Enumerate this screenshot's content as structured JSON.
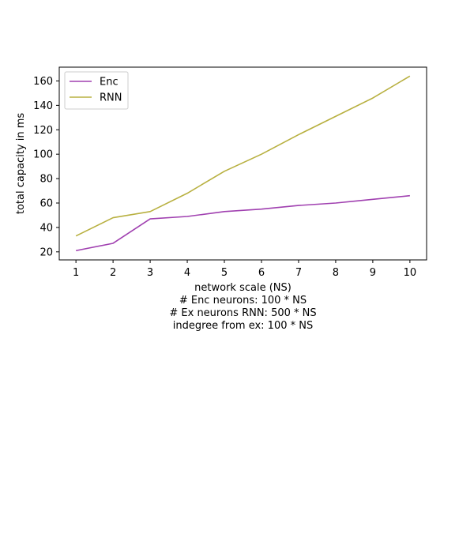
{
  "chart_data": {
    "type": "line",
    "x": [
      1,
      2,
      3,
      4,
      5,
      6,
      7,
      8,
      9,
      10
    ],
    "series": [
      {
        "name": "Enc",
        "color": "#a040b0",
        "values": [
          21,
          27,
          47,
          49,
          53,
          55,
          58,
          60,
          63,
          66
        ]
      },
      {
        "name": "RNN",
        "color": "#b8b040",
        "values": [
          33,
          48,
          53,
          68,
          86,
          100,
          116,
          131,
          146,
          164
        ]
      }
    ],
    "xlabel": "network scale (NS)",
    "xlabel_lines": [
      "# Enc neurons: 100 * NS",
      "# Ex neurons RNN: 500 * NS",
      "indegree from ex: 100 * NS"
    ],
    "ylabel": "total capacity in ms",
    "xticks": [
      1,
      2,
      3,
      4,
      5,
      6,
      7,
      8,
      9,
      10
    ],
    "yticks": [
      20,
      40,
      60,
      80,
      100,
      120,
      140,
      160
    ],
    "xlim": [
      0.55,
      10.45
    ],
    "ylim": [
      13.4,
      171.3
    ],
    "grid": false,
    "legend_position": "top-left"
  }
}
